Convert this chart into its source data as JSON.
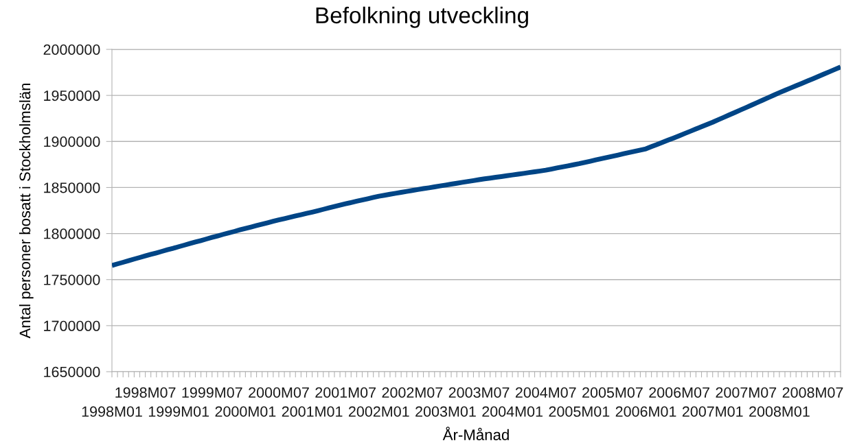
{
  "chart_data": {
    "type": "line",
    "title": "Befolkning utveckling",
    "xlabel": "År-Månad",
    "ylabel": "Antal personer bosatt i Stockholmslän",
    "categories": [
      "1998M01",
      null,
      null,
      null,
      null,
      null,
      "1998M07",
      null,
      null,
      null,
      null,
      null,
      "1999M01",
      null,
      null,
      null,
      null,
      null,
      "1999M07",
      null,
      null,
      null,
      null,
      null,
      "2000M01",
      null,
      null,
      null,
      null,
      null,
      "2000M07",
      null,
      null,
      null,
      null,
      null,
      "2001M01",
      null,
      null,
      null,
      null,
      null,
      "2001M07",
      null,
      null,
      null,
      null,
      null,
      "2002M01",
      null,
      null,
      null,
      null,
      null,
      "2002M07",
      null,
      null,
      null,
      null,
      null,
      "2003M01",
      null,
      null,
      null,
      null,
      null,
      "2003M07",
      null,
      null,
      null,
      null,
      null,
      "2004M01",
      null,
      null,
      null,
      null,
      null,
      "2004M07",
      null,
      null,
      null,
      null,
      null,
      "2005M01",
      null,
      null,
      null,
      null,
      null,
      "2005M07",
      null,
      null,
      null,
      null,
      null,
      "2006M01",
      null,
      null,
      null,
      null,
      null,
      "2006M07",
      null,
      null,
      null,
      null,
      null,
      "2007M01",
      null,
      null,
      null,
      null,
      null,
      "2007M07",
      null,
      null,
      null,
      null,
      null,
      "2008M01",
      null,
      null,
      null,
      null,
      null,
      "2008M07",
      null,
      null,
      null,
      null,
      null
    ],
    "series": [
      {
        "color": "#004586",
        "values": [
          1765400,
          1767100,
          1768800,
          1770500,
          1772300,
          1774000,
          1775700,
          1777400,
          1779000,
          1780700,
          1782400,
          1784000,
          1785700,
          1787400,
          1789100,
          1790800,
          1792400,
          1794100,
          1795800,
          1797400,
          1799100,
          1800700,
          1802300,
          1804000,
          1805600,
          1807100,
          1808700,
          1810200,
          1811700,
          1813300,
          1814800,
          1816200,
          1817600,
          1819100,
          1820500,
          1821900,
          1823300,
          1824800,
          1826300,
          1827800,
          1829300,
          1830800,
          1832300,
          1833700,
          1835100,
          1836500,
          1837800,
          1839200,
          1840600,
          1841600,
          1842700,
          1843700,
          1844700,
          1845800,
          1846800,
          1847800,
          1848800,
          1849700,
          1850700,
          1851700,
          1852700,
          1853700,
          1854600,
          1855600,
          1856600,
          1857500,
          1858500,
          1859400,
          1860200,
          1861100,
          1861900,
          1862800,
          1863600,
          1864500,
          1865300,
          1866200,
          1867100,
          1867900,
          1868800,
          1870000,
          1871200,
          1872400,
          1873500,
          1874700,
          1875900,
          1877300,
          1878600,
          1880000,
          1881300,
          1882700,
          1884000,
          1885300,
          1886700,
          1888000,
          1889300,
          1890700,
          1892000,
          1894400,
          1896700,
          1899100,
          1901500,
          1903800,
          1906200,
          1908700,
          1911100,
          1913600,
          1916000,
          1918500,
          1920900,
          1923600,
          1926200,
          1928900,
          1931500,
          1934200,
          1936800,
          1939500,
          1942200,
          1944900,
          1947600,
          1950300,
          1953000,
          1955500,
          1958000,
          1960500,
          1963000,
          1965500,
          1968000,
          1970600,
          1973200,
          1975700,
          1978300,
          1980900
        ]
      }
    ],
    "ylim": [
      1650000,
      2000000
    ],
    "yticks": [
      1650000,
      1700000,
      1750000,
      1800000,
      1850000,
      1900000,
      1950000,
      2000000
    ],
    "grid": "y",
    "legend": false,
    "marker": "none",
    "line_style": "solid"
  }
}
